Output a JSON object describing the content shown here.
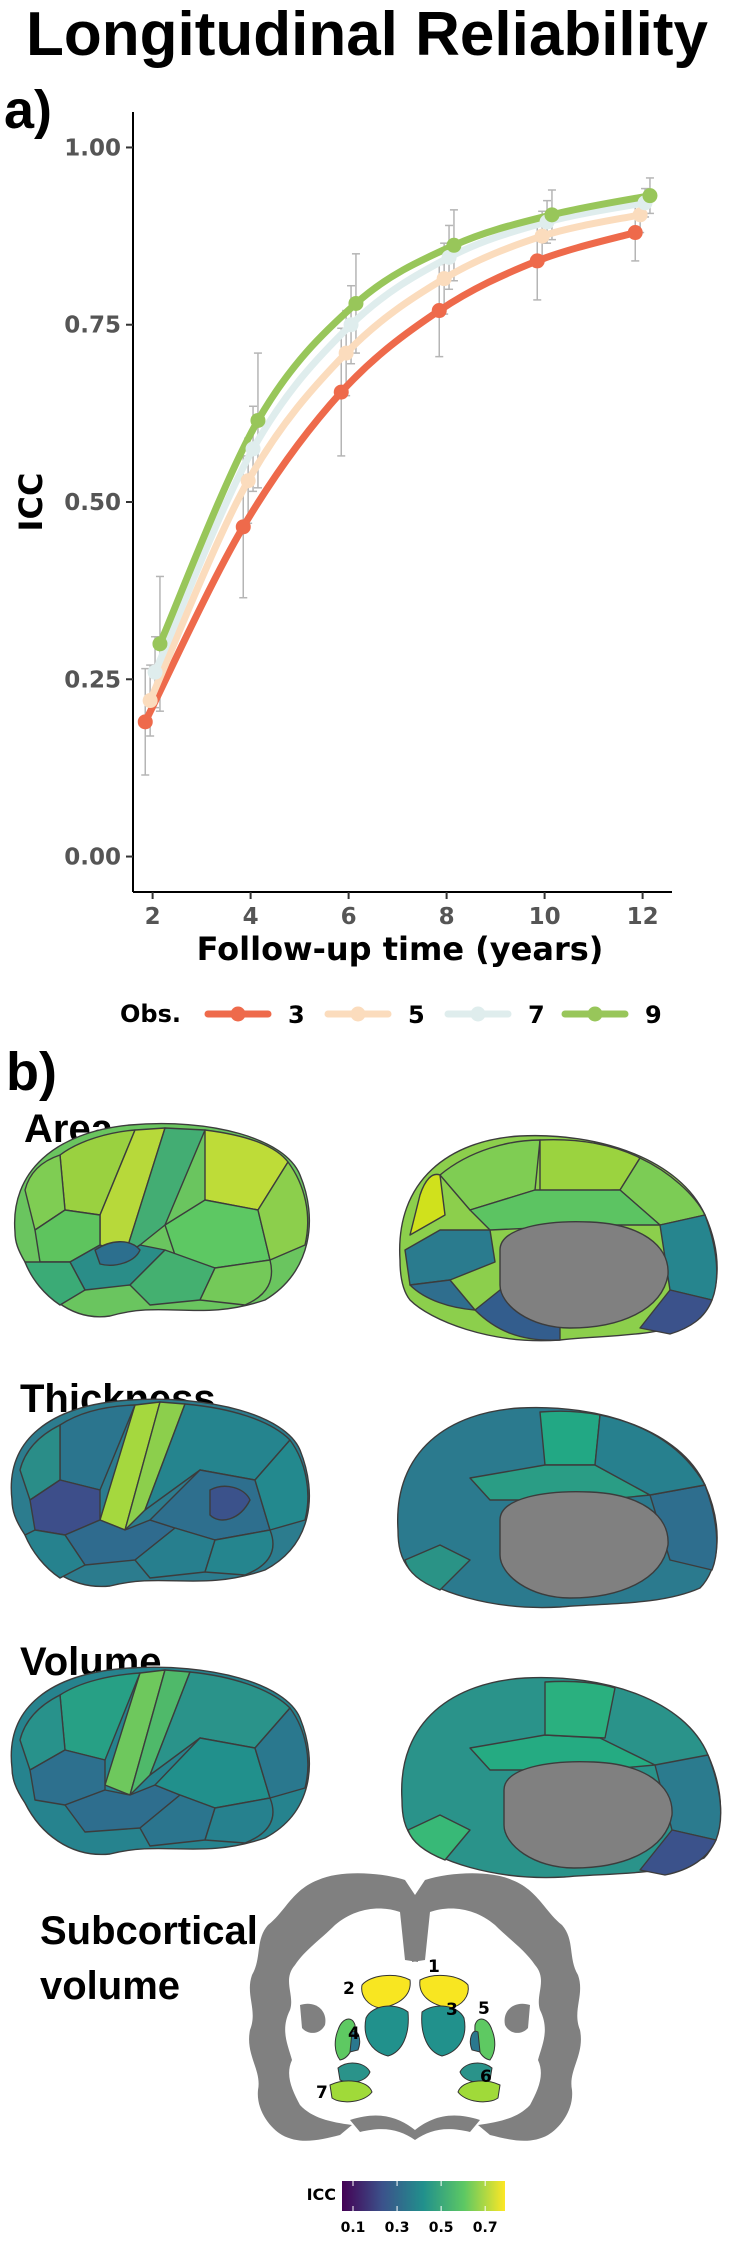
{
  "title": "Longitudinal Reliability",
  "panel_a_label": "a)",
  "panel_b_label": "b)",
  "chart_data": {
    "type": "line",
    "title": "Longitudinal Reliability",
    "xlabel": "Follow-up time (years)",
    "ylabel": "ICC",
    "xlim": [
      1.6,
      12.6
    ],
    "ylim": [
      -0.05,
      1.05
    ],
    "x_ticks": [
      2,
      4,
      6,
      8,
      10,
      12
    ],
    "y_ticks": [
      0.0,
      0.25,
      0.5,
      0.75,
      1.0
    ],
    "y_tick_labels": [
      "0.00",
      "0.25",
      "0.50",
      "0.75",
      "1.00"
    ],
    "grid": false,
    "legend_title": "Obs.",
    "legend_position": "bottom",
    "series": [
      {
        "name": "3",
        "color": "#ee6a4b",
        "x": [
          1.85,
          3.85,
          5.85,
          7.85,
          9.85,
          11.85
        ],
        "y": [
          0.19,
          0.465,
          0.655,
          0.77,
          0.84,
          0.88
        ],
        "err": [
          0.075,
          0.1,
          0.09,
          0.065,
          0.055,
          0.04
        ]
      },
      {
        "name": "5",
        "color": "#fbdcbd",
        "x": [
          1.95,
          3.95,
          5.95,
          7.95,
          9.95,
          11.95
        ],
        "y": [
          0.22,
          0.53,
          0.71,
          0.815,
          0.875,
          0.905
        ],
        "err": [
          0.05,
          0.06,
          0.06,
          0.05,
          0.035,
          0.025
        ]
      },
      {
        "name": "7",
        "color": "#dfeded",
        "x": [
          2.05,
          4.05,
          6.05,
          8.05,
          10.05,
          12.05
        ],
        "y": [
          0.26,
          0.575,
          0.75,
          0.845,
          0.895,
          0.922
        ],
        "err": [
          0.05,
          0.06,
          0.055,
          0.045,
          0.03,
          0.02
        ]
      },
      {
        "name": "9",
        "color": "#98c65a",
        "x": [
          2.15,
          4.15,
          6.15,
          8.15,
          10.15,
          12.15
        ],
        "y": [
          0.3,
          0.615,
          0.78,
          0.862,
          0.905,
          0.932
        ],
        "err": [
          0.095,
          0.095,
          0.07,
          0.05,
          0.035,
          0.025
        ]
      }
    ]
  },
  "brain_sections": [
    {
      "label": "Area"
    },
    {
      "label": "Thickness"
    },
    {
      "label": "Volume"
    },
    {
      "label": "Subcortical\nvolume"
    }
  ],
  "subcortical_label_lines": [
    "Subcortical",
    "volume"
  ],
  "subcortical_region_labels": [
    "1",
    "2",
    "3",
    "4",
    "5",
    "6",
    "7"
  ],
  "colorbar": {
    "title": "ICC",
    "tick_labels": [
      "0.1",
      "0.3",
      "0.5",
      "0.7"
    ],
    "tick_values": [
      0.1,
      0.3,
      0.5,
      0.7
    ],
    "range": [
      0.05,
      0.79
    ],
    "colors": [
      "#440154",
      "#3b528b",
      "#21908c",
      "#5dc863",
      "#fde725"
    ]
  },
  "colors": {
    "medial_wall": "#808080",
    "region_border": "#3c3c3c"
  }
}
